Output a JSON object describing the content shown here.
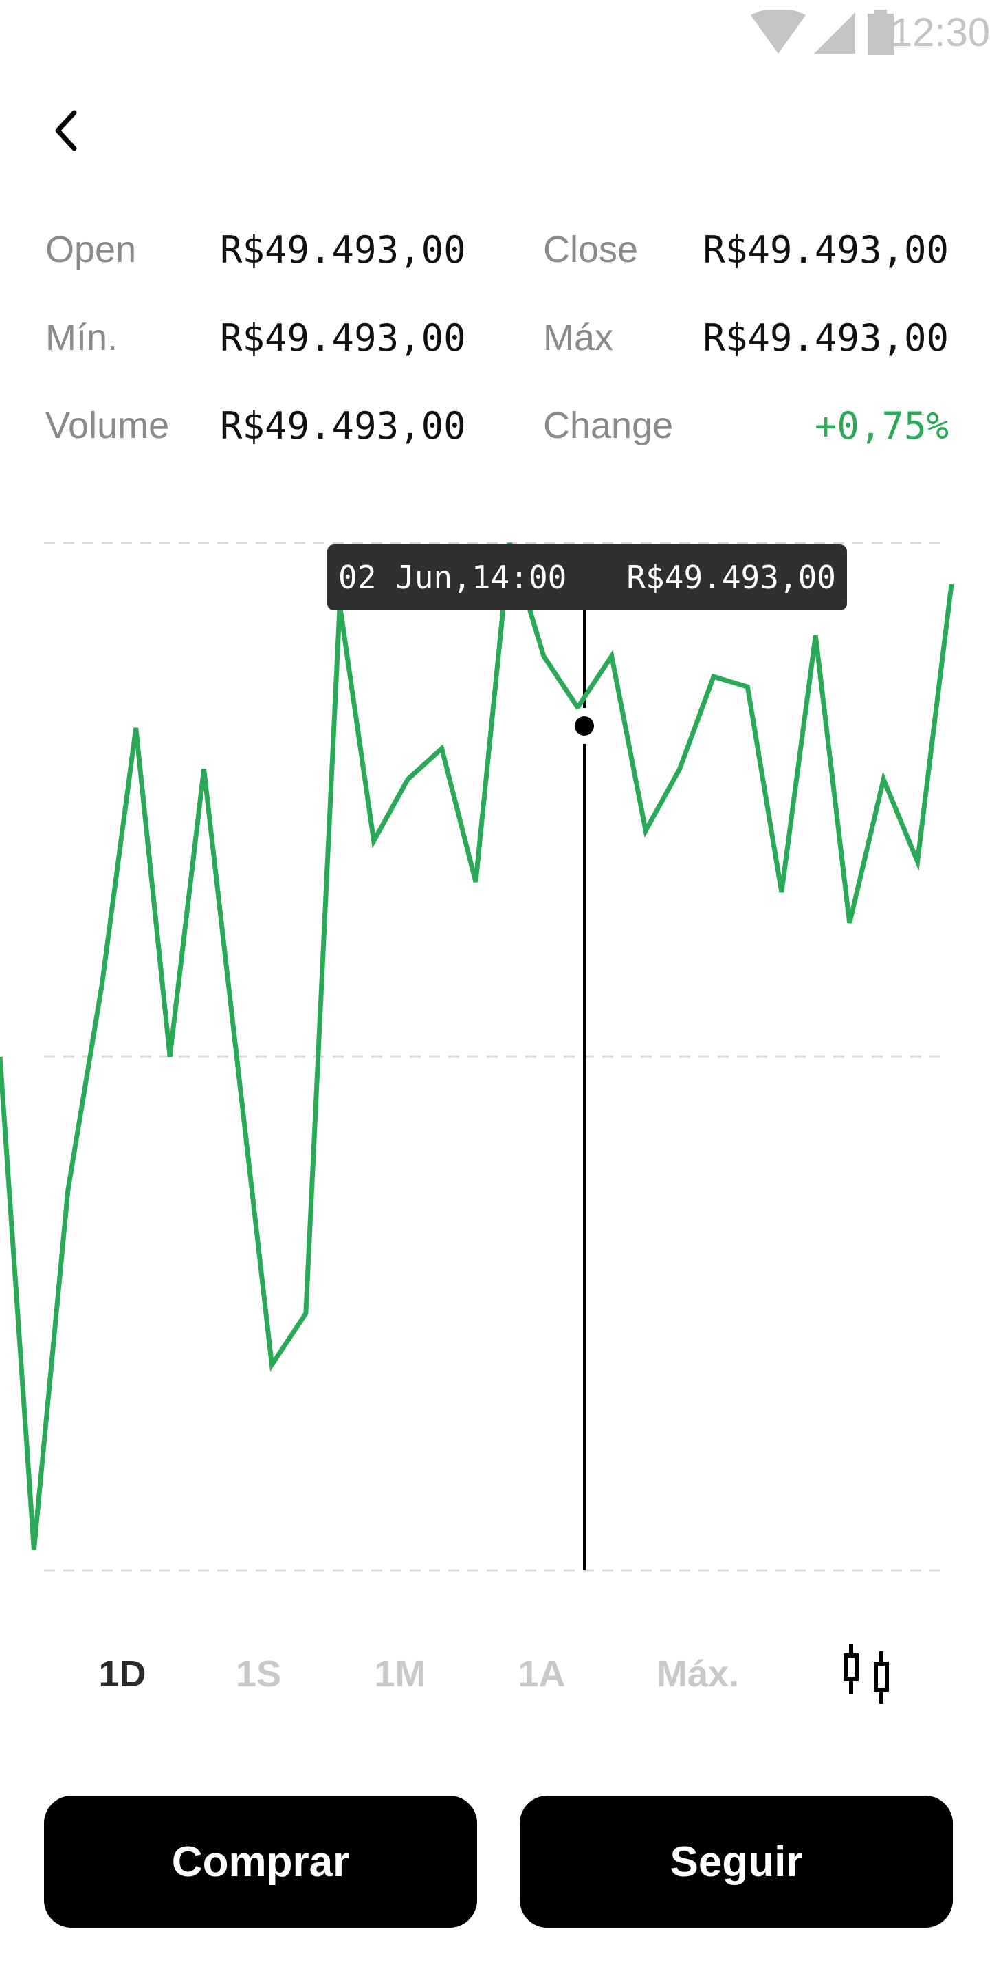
{
  "status_bar": {
    "time": "12:30",
    "icons": [
      "wifi-icon",
      "signal-icon",
      "battery-icon"
    ]
  },
  "nav": {
    "back_icon": "chevron-left-icon"
  },
  "stats": {
    "open_label": "Open",
    "open_value": "R$49.493,00",
    "close_label": "Close",
    "close_value": "R$49.493,00",
    "min_label": "Mín.",
    "min_value": "R$49.493,00",
    "max_label": "Máx",
    "max_value": "R$49.493,00",
    "volume_label": "Volume",
    "volume_value": "R$49.493,00",
    "change_label": "Change",
    "change_value": "+0,75%"
  },
  "tooltip": {
    "date": "02 Jun,14:00",
    "price": "R$49.493,00"
  },
  "ranges": [
    {
      "label": "1D",
      "active": true
    },
    {
      "label": "1S",
      "active": false
    },
    {
      "label": "1M",
      "active": false
    },
    {
      "label": "1A",
      "active": false
    },
    {
      "label": "Máx.",
      "active": false
    }
  ],
  "chart_type_icon": "candlestick-icon",
  "actions": {
    "buy_label": "Comprar",
    "follow_label": "Seguir"
  },
  "colors": {
    "line": "#2aa957",
    "positive": "#2aa957",
    "button": "#000000",
    "tooltip_bg": "#303030"
  },
  "chart_data": {
    "type": "line",
    "series": [
      {
        "values": [
          50,
          2,
          37,
          57,
          82,
          50,
          78,
          49,
          20,
          25,
          94,
          71,
          77,
          80,
          67,
          100,
          89,
          84,
          89,
          72,
          78,
          87,
          86,
          66,
          91,
          63,
          77,
          69,
          96
        ]
      }
    ],
    "ylim": [
      0,
      100
    ],
    "grid": true,
    "selected_index": 17
  }
}
